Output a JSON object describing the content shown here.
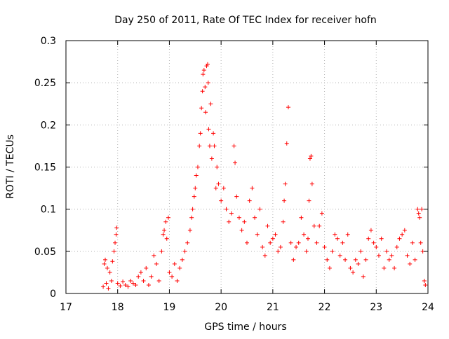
{
  "chart_data": {
    "type": "scatter",
    "title": "Day 250 of 2011, Rate Of TEC Index for receiver hofn",
    "xlabel": "GPS time / hours",
    "ylabel": "ROTI / TECUs",
    "xlim": [
      17,
      24
    ],
    "ylim": [
      0,
      0.3
    ],
    "xticks": [
      "17",
      "18",
      "19",
      "20",
      "21",
      "22",
      "23",
      "24"
    ],
    "yticks": [
      "0",
      "0.05",
      "0.1",
      "0.15",
      "0.2",
      "0.25",
      "0.3"
    ],
    "grid": true,
    "marker": "plus",
    "color": "#ff0000",
    "series": [
      {
        "name": "ROTI",
        "points": [
          [
            17.72,
            0.008
          ],
          [
            17.74,
            0.035
          ],
          [
            17.76,
            0.04
          ],
          [
            17.78,
            0.012
          ],
          [
            17.8,
            0.03
          ],
          [
            17.82,
            0.006
          ],
          [
            17.85,
            0.025
          ],
          [
            17.88,
            0.015
          ],
          [
            17.9,
            0.038
          ],
          [
            17.93,
            0.05
          ],
          [
            17.95,
            0.06
          ],
          [
            17.97,
            0.07
          ],
          [
            17.98,
            0.078
          ],
          [
            18.0,
            0.012
          ],
          [
            18.05,
            0.009
          ],
          [
            18.1,
            0.014
          ],
          [
            18.15,
            0.01
          ],
          [
            18.2,
            0.008
          ],
          [
            18.25,
            0.015
          ],
          [
            18.3,
            0.012
          ],
          [
            18.35,
            0.01
          ],
          [
            18.4,
            0.02
          ],
          [
            18.45,
            0.025
          ],
          [
            18.5,
            0.015
          ],
          [
            18.55,
            0.03
          ],
          [
            18.6,
            0.01
          ],
          [
            18.65,
            0.02
          ],
          [
            18.7,
            0.045
          ],
          [
            18.75,
            0.035
          ],
          [
            18.8,
            0.015
          ],
          [
            18.85,
            0.05
          ],
          [
            18.88,
            0.07
          ],
          [
            18.9,
            0.075
          ],
          [
            18.93,
            0.085
          ],
          [
            18.95,
            0.065
          ],
          [
            18.98,
            0.09
          ],
          [
            19.0,
            0.025
          ],
          [
            19.05,
            0.02
          ],
          [
            19.1,
            0.035
          ],
          [
            19.15,
            0.015
          ],
          [
            19.2,
            0.03
          ],
          [
            19.25,
            0.04
          ],
          [
            19.3,
            0.05
          ],
          [
            19.35,
            0.06
          ],
          [
            19.4,
            0.075
          ],
          [
            19.43,
            0.09
          ],
          [
            19.45,
            0.1
          ],
          [
            19.48,
            0.115
          ],
          [
            19.5,
            0.125
          ],
          [
            19.52,
            0.14
          ],
          [
            19.55,
            0.15
          ],
          [
            19.58,
            0.175
          ],
          [
            19.6,
            0.19
          ],
          [
            19.62,
            0.22
          ],
          [
            19.64,
            0.24
          ],
          [
            19.65,
            0.26
          ],
          [
            19.67,
            0.265
          ],
          [
            19.69,
            0.245
          ],
          [
            19.7,
            0.215
          ],
          [
            19.72,
            0.27
          ],
          [
            19.74,
            0.272
          ],
          [
            19.75,
            0.25
          ],
          [
            19.76,
            0.195
          ],
          [
            19.78,
            0.175
          ],
          [
            19.8,
            0.225
          ],
          [
            19.82,
            0.16
          ],
          [
            19.85,
            0.19
          ],
          [
            19.87,
            0.175
          ],
          [
            19.9,
            0.125
          ],
          [
            19.92,
            0.15
          ],
          [
            19.95,
            0.13
          ],
          [
            20.0,
            0.11
          ],
          [
            20.05,
            0.125
          ],
          [
            20.1,
            0.1
          ],
          [
            20.15,
            0.085
          ],
          [
            20.2,
            0.095
          ],
          [
            20.25,
            0.175
          ],
          [
            20.27,
            0.155
          ],
          [
            20.3,
            0.115
          ],
          [
            20.35,
            0.09
          ],
          [
            20.4,
            0.075
          ],
          [
            20.45,
            0.085
          ],
          [
            20.5,
            0.06
          ],
          [
            20.55,
            0.11
          ],
          [
            20.6,
            0.125
          ],
          [
            20.65,
            0.09
          ],
          [
            20.7,
            0.07
          ],
          [
            20.75,
            0.1
          ],
          [
            20.8,
            0.055
          ],
          [
            20.85,
            0.045
          ],
          [
            20.9,
            0.08
          ],
          [
            20.95,
            0.06
          ],
          [
            21.0,
            0.065
          ],
          [
            21.05,
            0.07
          ],
          [
            21.1,
            0.05
          ],
          [
            21.15,
            0.055
          ],
          [
            21.2,
            0.085
          ],
          [
            21.22,
            0.11
          ],
          [
            21.24,
            0.13
          ],
          [
            21.27,
            0.178
          ],
          [
            21.3,
            0.221
          ],
          [
            21.35,
            0.06
          ],
          [
            21.4,
            0.04
          ],
          [
            21.45,
            0.055
          ],
          [
            21.5,
            0.06
          ],
          [
            21.55,
            0.09
          ],
          [
            21.6,
            0.07
          ],
          [
            21.65,
            0.05
          ],
          [
            21.68,
            0.065
          ],
          [
            21.7,
            0.11
          ],
          [
            21.72,
            0.16
          ],
          [
            21.74,
            0.163
          ],
          [
            21.76,
            0.13
          ],
          [
            21.8,
            0.08
          ],
          [
            21.85,
            0.06
          ],
          [
            21.9,
            0.08
          ],
          [
            21.95,
            0.095
          ],
          [
            22.0,
            0.055
          ],
          [
            22.05,
            0.04
          ],
          [
            22.1,
            0.03
          ],
          [
            22.15,
            0.05
          ],
          [
            22.2,
            0.07
          ],
          [
            22.25,
            0.065
          ],
          [
            22.3,
            0.045
          ],
          [
            22.35,
            0.06
          ],
          [
            22.4,
            0.04
          ],
          [
            22.45,
            0.07
          ],
          [
            22.5,
            0.03
          ],
          [
            22.55,
            0.025
          ],
          [
            22.6,
            0.04
          ],
          [
            22.65,
            0.035
          ],
          [
            22.7,
            0.05
          ],
          [
            22.75,
            0.02
          ],
          [
            22.8,
            0.04
          ],
          [
            22.85,
            0.065
          ],
          [
            22.9,
            0.075
          ],
          [
            22.95,
            0.06
          ],
          [
            23.0,
            0.055
          ],
          [
            23.05,
            0.045
          ],
          [
            23.1,
            0.065
          ],
          [
            23.15,
            0.03
          ],
          [
            23.2,
            0.05
          ],
          [
            23.25,
            0.04
          ],
          [
            23.3,
            0.045
          ],
          [
            23.35,
            0.03
          ],
          [
            23.4,
            0.055
          ],
          [
            23.45,
            0.065
          ],
          [
            23.5,
            0.07
          ],
          [
            23.55,
            0.075
          ],
          [
            23.6,
            0.045
          ],
          [
            23.65,
            0.035
          ],
          [
            23.7,
            0.06
          ],
          [
            23.75,
            0.04
          ],
          [
            23.8,
            0.1
          ],
          [
            23.82,
            0.095
          ],
          [
            23.84,
            0.09
          ],
          [
            23.86,
            0.06
          ],
          [
            23.88,
            0.1
          ],
          [
            23.9,
            0.05
          ],
          [
            23.93,
            0.015
          ],
          [
            23.95,
            0.01
          ]
        ]
      }
    ]
  }
}
